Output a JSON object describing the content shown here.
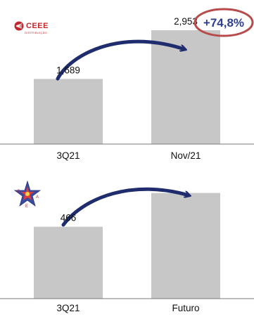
{
  "brand": {
    "name": "CEEE",
    "subtitle": "DISTRIBUIÇÃO"
  },
  "badge": {
    "text": "+74,8%"
  },
  "colors": {
    "bar": "#c7c7c7",
    "arrow": "#1f2d6e",
    "badge_ring": "#b84a4a",
    "badge_text": "#2e3e93",
    "brand_red": "#c2272d"
  },
  "icons": {
    "top_logo": "ceee-logo-icon",
    "bottom_logo": "star-emblem-icon"
  },
  "chart_data": [
    {
      "type": "bar",
      "categories": [
        "3Q21",
        "Nov/21"
      ],
      "values": [
        1689,
        2953
      ],
      "value_labels": [
        "1,689",
        "2,953"
      ],
      "ylim": [
        0,
        3500
      ],
      "grid": false,
      "annotation": "+74,8%"
    },
    {
      "type": "bar",
      "categories": [
        "3Q21",
        "Futuro"
      ],
      "values": [
        466,
        685
      ],
      "value_labels": [
        "466",
        ""
      ],
      "ylim": [
        0,
        820
      ],
      "grid": false
    }
  ]
}
